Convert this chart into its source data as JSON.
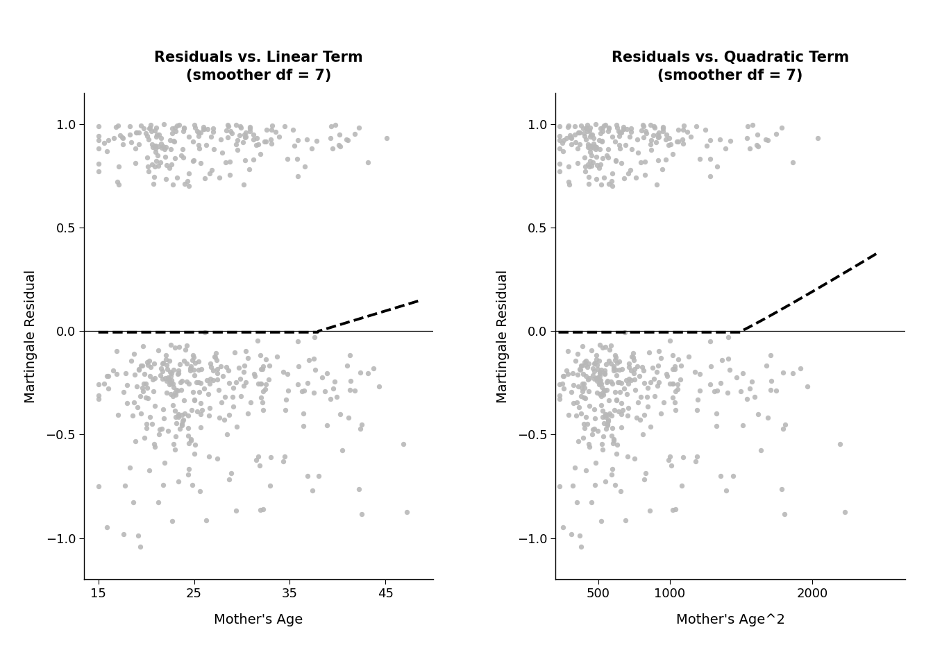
{
  "title_left": "Residuals vs. Linear Term\n(smoother df = 7)",
  "title_right": "Residuals vs. Quadratic Term\n(smoother df = 7)",
  "xlabel_left": "Mother's Age",
  "xlabel_right": "Mother's Age^2",
  "ylabel": "Martingale Residual",
  "xlim_left": [
    13.5,
    50
  ],
  "xlim_right": [
    200,
    2650
  ],
  "ylim": [
    -1.2,
    1.15
  ],
  "yticks": [
    -1.0,
    -0.5,
    0.0,
    0.5,
    1.0
  ],
  "xticks_left": [
    15,
    25,
    35,
    45
  ],
  "xticks_right": [
    500,
    1000,
    2000
  ],
  "scatter_color": "#b8b8b8",
  "scatter_size": 28,
  "scatter_alpha": 0.9,
  "hline_color": "#000000",
  "smoother_color": "#000000",
  "smoother_lw": 2.8,
  "smoother_ls": "--",
  "background_color": "#ffffff"
}
